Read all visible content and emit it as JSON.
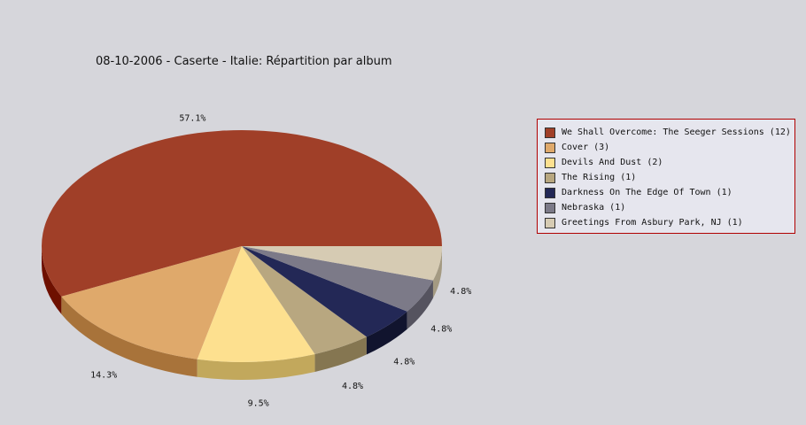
{
  "chart_data": {
    "type": "pie",
    "title": "08-10-2006 - Caserte - Italie:  Répartition par album",
    "legend_position": "right",
    "slices": [
      {
        "label": "We Shall Overcome: The Seeger Sessions",
        "count": 12,
        "percent": "57.1%",
        "color": "#a03f28",
        "side_color": "#6e1000"
      },
      {
        "label": "Cover",
        "count": 3,
        "percent": "14.3%",
        "color": "#dfa96b",
        "side_color": "#a8733a"
      },
      {
        "label": "Devils And Dust",
        "count": 2,
        "percent": "9.5%",
        "color": "#fde08f",
        "side_color": "#c2a85c"
      },
      {
        "label": "The Rising",
        "count": 1,
        "percent": "4.8%",
        "color": "#b8a780",
        "side_color": "#857651"
      },
      {
        "label": "Darkness On The Edge Of Town",
        "count": 1,
        "percent": "4.8%",
        "color": "#232856",
        "side_color": "#11142e"
      },
      {
        "label": "Nebraska",
        "count": 1,
        "percent": "4.8%",
        "color": "#7c7a88",
        "side_color": "#55535f"
      },
      {
        "label": "Greetings From Asbury Park, NJ",
        "count": 1,
        "percent": "4.8%",
        "color": "#d6cbb3",
        "side_color": "#a49a82"
      }
    ]
  }
}
